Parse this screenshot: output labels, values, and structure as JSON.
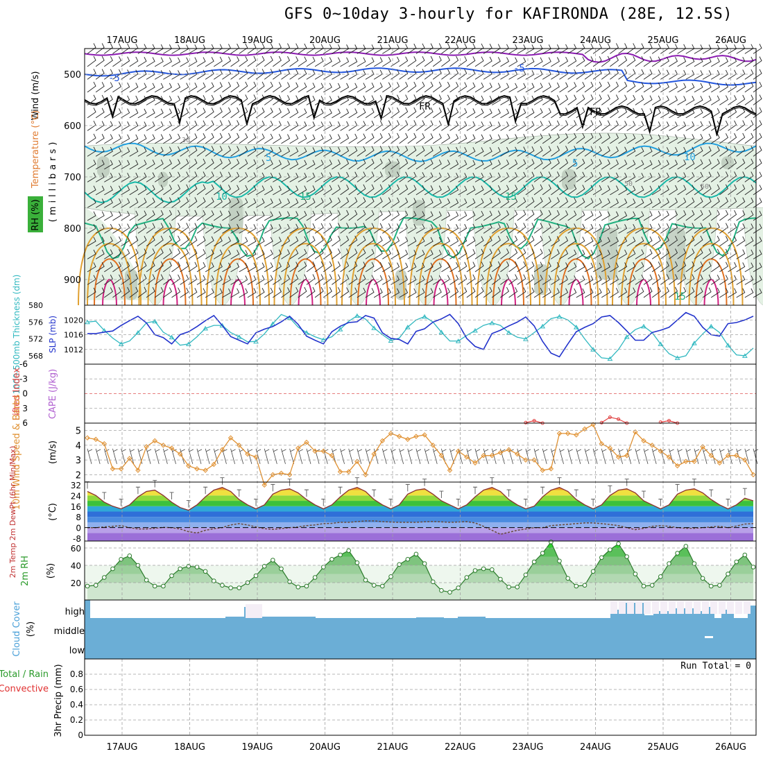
{
  "title": "GFS 0~10day 3-hourly for KAFIRONDA (28E, 12.5S)",
  "dates": [
    "17AUG",
    "18AUG",
    "19AUG",
    "20AUG",
    "21AUG",
    "22AUG",
    "23AUG",
    "24AUG",
    "25AUG",
    "26AUG"
  ],
  "colors": {
    "grid": "#a0a0a0",
    "rh_fill": "#e4f1e4",
    "rh_dark": "#b9c8b9",
    "temp_neg": "#2255dd",
    "temp_5": "#22a0e0",
    "temp_10": "#18b8a8",
    "temp_15": "#20b080",
    "temp_20": "#e0a030",
    "temp_25": "#e07020",
    "temp_30": "#d02080",
    "freezing": "#000000",
    "slp": "#2233cc",
    "thickness": "#30b8c0",
    "wind10": "#e09030",
    "cloud": "#6baed6",
    "rh2m": "#2a9a2a",
    "purple": "#8a1ab0"
  },
  "panels": {
    "upper_air": {
      "ylabels": [
        "Wind (m/s)",
        "Temperature (°C)",
        "RH (%)",
        "(millibars)"
      ],
      "yticks": [
        500,
        600,
        700,
        800,
        900
      ],
      "contour_labels": [
        "-5",
        "-5",
        "FR",
        "FR",
        "5",
        "5",
        "10",
        "15",
        "15",
        "10",
        "30",
        "50",
        "50",
        "15"
      ]
    },
    "slp": {
      "ylabel_thick": "1000-500mb Thickness (dm)",
      "ylabel_slp": "SLP (mb)",
      "thick_ticks": [
        568,
        572,
        576,
        580
      ],
      "slp_ticks": [
        1012,
        1016,
        1020
      ]
    },
    "stability": {
      "ylabel_li": "Lifted Index",
      "ylabel_cape": "CAPE (J/kg)",
      "yticks": [
        "-6",
        "-3",
        "0",
        "3",
        "6"
      ]
    },
    "wind10m": {
      "ylabel": "10m Wind Speed & Barbs",
      "unit": "(m/s)",
      "yticks": [
        2,
        3,
        4,
        5
      ]
    },
    "temp2m": {
      "ylabel": "2m Temp 2m DewPt (6hr Min/Max)",
      "unit": "(°C)",
      "yticks": [
        32,
        24,
        16,
        8,
        0,
        -8
      ]
    },
    "rh2m": {
      "ylabel": "2m RH",
      "unit": "(%)",
      "yticks": [
        20,
        40,
        60
      ]
    },
    "cloud": {
      "ylabel": "Cloud Cover",
      "unit": "(%)",
      "levels": [
        "high",
        "middle",
        "low"
      ]
    },
    "precip": {
      "ylabel_total": "Total / Rain",
      "ylabel_conv": "Convective",
      "ylabel": "3hr Precip (mm)",
      "yticks": [
        "0",
        "0.2",
        "0.4",
        "0.6",
        "0.8"
      ],
      "run_total": "Run Total = 0"
    }
  },
  "chart_data": [
    {
      "type": "line",
      "title": "SLP and 1000-500mb thickness",
      "x": [
        0,
        1,
        2,
        3,
        4,
        5,
        6,
        7,
        8,
        9,
        10,
        11,
        12,
        13,
        14,
        15,
        16,
        17,
        18,
        19,
        20,
        21,
        22,
        23,
        24,
        25,
        26,
        27,
        28,
        29,
        30,
        31,
        32,
        33,
        34,
        35,
        36,
        37,
        38,
        39,
        40,
        41,
        42,
        43,
        44,
        45,
        46,
        47,
        48,
        49,
        50,
        51,
        52,
        53,
        54,
        55,
        56,
        57,
        58,
        59,
        60,
        61,
        62,
        63,
        64,
        65,
        66,
        67,
        68,
        69,
        70,
        71,
        72,
        73,
        74,
        75,
        76,
        77,
        78,
        79
      ],
      "series": [
        {
          "name": "SLP (mb)",
          "values": [
            1016.3,
            1016.3,
            1016.7,
            1017.0,
            1018.5,
            1019.8,
            1021.0,
            1019.2,
            1016.0,
            1015.2,
            1013.5,
            1016.0,
            1016.8,
            1018.2,
            1019.8,
            1021.2,
            1018.5,
            1015.5,
            1014.5,
            1013.5,
            1016.5,
            1017.5,
            1018.2,
            1019.5,
            1021.0,
            1018.8,
            1015.6,
            1014.5,
            1013.5,
            1016.8,
            1018.3,
            1019.3,
            1019.5,
            1021.2,
            1020.5,
            1016.5,
            1015.0,
            1014.7,
            1013.5,
            1016.9,
            1017.6,
            1019.4,
            1020.3,
            1021.5,
            1019.0,
            1015.0,
            1012.8,
            1012.0,
            1016.3,
            1017.2,
            1018.4,
            1019.4,
            1020.8,
            1018.4,
            1014.2,
            1011.0,
            1010.0,
            1013.5,
            1016.8,
            1018.0,
            1019.0,
            1020.8,
            1021.2,
            1019.3,
            1017.0,
            1014.5,
            1014.5,
            1016.6,
            1017.2,
            1018.0,
            1020.0,
            1022.0,
            1021.0,
            1018.0,
            1016.0,
            1015.6,
            1019.0,
            1019.3,
            1020.0,
            1021.0
          ]
        },
        {
          "name": "Thickness (dm)",
          "values": [
            576.0,
            576.2,
            574.0,
            572.2,
            570.8,
            571.5,
            573.5,
            575.8,
            576.2,
            573.6,
            572.4,
            570.5,
            570.8,
            572.5,
            574.5,
            575.2,
            575.2,
            573.5,
            572.5,
            571.3,
            571.4,
            573.2,
            575.6,
            577.8,
            577.0,
            574.8,
            573.5,
            572.5,
            571.8,
            572.5,
            574.3,
            576.2,
            577.5,
            576.7,
            574.6,
            573.0,
            571.6,
            572.2,
            574.8,
            576.5,
            577.3,
            576.0,
            573.6,
            571.5,
            571.5,
            572.8,
            574.0,
            575.2,
            575.8,
            575.2,
            573.5,
            572.4,
            572.0,
            573.5,
            575.0,
            576.8,
            577.3,
            576.5,
            574.8,
            572.0,
            569.5,
            567.5,
            567.3,
            569.5,
            572.5,
            574.2,
            575.0,
            573.5,
            570.8,
            568.5,
            567.5,
            568.0,
            571.0,
            573.2,
            575.0,
            573.5,
            570.5,
            568.2,
            568.0,
            569.8
          ]
        }
      ],
      "slp_range": [
        1008,
        1024
      ],
      "thickness_range": [
        566,
        580
      ]
    },
    {
      "type": "line",
      "title": "10m Wind Speed (m/s)",
      "x": [
        0,
        1,
        2,
        3,
        4,
        5,
        6,
        7,
        8,
        9,
        10,
        11,
        12,
        13,
        14,
        15,
        16,
        17,
        18,
        19,
        20,
        21,
        22,
        23,
        24,
        25,
        26,
        27,
        28,
        29,
        30,
        31,
        32,
        33,
        34,
        35,
        36,
        37,
        38,
        39,
        40,
        41,
        42,
        43,
        44,
        45,
        46,
        47,
        48,
        49,
        50,
        51,
        52,
        53,
        54,
        55,
        56,
        57,
        58,
        59,
        60,
        61,
        62,
        63,
        64,
        65,
        66,
        67,
        68,
        69,
        70,
        71,
        72,
        73,
        74,
        75,
        76,
        77,
        78,
        79
      ],
      "values": [
        4.5,
        4.4,
        4.1,
        2.4,
        2.4,
        3.1,
        2.3,
        3.9,
        4.3,
        4.0,
        3.8,
        3.4,
        2.6,
        2.4,
        2.3,
        2.7,
        3.7,
        4.5,
        4.0,
        3.4,
        3.2,
        1.3,
        2.0,
        2.1,
        2.0,
        3.8,
        4.2,
        3.6,
        3.6,
        3.3,
        2.2,
        2.2,
        2.9,
        2.0,
        3.4,
        4.3,
        4.8,
        4.6,
        4.4,
        4.6,
        4.7,
        4.0,
        3.3,
        2.3,
        3.6,
        3.2,
        2.8,
        3.3,
        3.3,
        3.5,
        3.7,
        3.4,
        3.0,
        3.0,
        2.3,
        2.4,
        4.8,
        4.8,
        4.7,
        5.1,
        5.4,
        4.1,
        3.8,
        3.2,
        3.3,
        4.9,
        4.3,
        4.0,
        3.6,
        3.2,
        2.6,
        2.9,
        2.9,
        3.9,
        3.3,
        2.8,
        3.3,
        3.3,
        3.0,
        2.0
      ],
      "yrange": [
        1.5,
        5.5
      ]
    },
    {
      "type": "area",
      "title": "2m Temperature and Dew Point (°C)",
      "x": [
        0,
        1,
        2,
        3,
        4,
        5,
        6,
        7,
        8,
        9,
        10,
        11,
        12,
        13,
        14,
        15,
        16,
        17,
        18,
        19,
        20,
        21,
        22,
        23,
        24,
        25,
        26,
        27,
        28,
        29,
        30,
        31,
        32,
        33,
        34,
        35,
        36,
        37,
        38,
        39,
        40,
        41,
        42,
        43,
        44,
        45,
        46,
        47,
        48,
        49,
        50,
        51,
        52,
        53,
        54,
        55,
        56,
        57,
        58,
        59,
        60,
        61,
        62,
        63,
        64,
        65,
        66,
        67,
        68,
        69,
        70,
        71,
        72,
        73,
        74,
        75,
        76,
        77,
        78,
        79
      ],
      "series": [
        {
          "name": "2m Temp",
          "values": [
            27,
            24,
            19,
            16,
            14,
            17,
            23,
            27,
            28,
            24,
            19,
            15,
            13,
            17,
            23,
            28,
            30,
            27,
            21,
            17,
            14,
            17,
            25,
            28,
            29,
            26,
            21,
            17,
            14,
            17,
            23,
            28,
            30,
            27,
            21,
            17,
            14,
            17,
            25,
            28,
            29,
            25,
            20,
            17,
            14,
            17,
            23,
            28,
            30,
            27,
            21,
            17,
            14,
            16,
            23,
            28,
            30,
            27,
            21,
            17,
            14,
            17,
            24,
            28,
            29,
            26,
            20,
            17,
            14,
            17,
            25,
            28,
            29,
            26,
            21,
            17,
            14,
            17,
            22,
            20
          ]
        },
        {
          "name": "2m DewPt",
          "values": [
            0,
            0,
            0.5,
            1,
            1.5,
            0,
            -1,
            -1,
            -0.5,
            0.2,
            0,
            -1,
            -3,
            -4,
            -2,
            -0.8,
            0,
            2,
            3,
            2,
            0.5,
            -0.8,
            -1.3,
            -0.7,
            0,
            0.5,
            1.5,
            2,
            3,
            3.2,
            4,
            4,
            4.5,
            5,
            5,
            4.5,
            4.2,
            4,
            4,
            4,
            4.4,
            4.6,
            4.3,
            4.0,
            4.2,
            4.5,
            3.5,
            1,
            -2,
            -5,
            -3.5,
            -2,
            -1,
            0,
            0,
            1.5,
            2,
            2.5,
            3,
            3.5,
            3.5,
            3,
            2.3,
            1.5,
            0,
            -1.5,
            -0.5,
            1,
            1.5,
            1,
            0,
            -0.5,
            -0.5,
            0,
            0.5,
            1,
            0,
            1.2,
            2.7,
            3
          ]
        }
      ],
      "yrange": [
        -10,
        34
      ]
    },
    {
      "type": "area",
      "title": "2m RH (%)",
      "x": [
        0,
        1,
        2,
        3,
        4,
        5,
        6,
        7,
        8,
        9,
        10,
        11,
        12,
        13,
        14,
        15,
        16,
        17,
        18,
        19,
        20,
        21,
        22,
        23,
        24,
        25,
        26,
        27,
        28,
        29,
        30,
        31,
        32,
        33,
        34,
        35,
        36,
        37,
        38,
        39,
        40,
        41,
        42,
        43,
        44,
        45,
        46,
        47,
        48,
        49,
        50,
        51,
        52,
        53,
        54,
        55,
        56,
        57,
        58,
        59,
        60,
        61,
        62,
        63,
        64,
        65,
        66,
        67,
        68,
        69,
        70,
        71,
        72,
        73,
        74,
        75,
        76,
        77,
        78,
        79
      ],
      "values": [
        16,
        17,
        26,
        36,
        47,
        51,
        40,
        23,
        16,
        16,
        28,
        36,
        39,
        38,
        33,
        22,
        17,
        14,
        14,
        20,
        28,
        39,
        46,
        36,
        21,
        15,
        16,
        26,
        38,
        47,
        52,
        57,
        43,
        23,
        17,
        16,
        27,
        41,
        47,
        53,
        42,
        21,
        11,
        9,
        14,
        26,
        34,
        36,
        35,
        24,
        15,
        15,
        29,
        44,
        54,
        67,
        45,
        25,
        16,
        17,
        33,
        49,
        58,
        65,
        50,
        30,
        16,
        17,
        27,
        42,
        54,
        62,
        42,
        25,
        16,
        17,
        30,
        44,
        52,
        38
      ],
      "yrange": [
        0,
        68
      ]
    },
    {
      "type": "line",
      "title": "Lifted Index",
      "x": [
        52,
        53,
        54,
        61,
        62,
        63,
        64,
        68,
        69,
        70
      ],
      "values": [
        5.9,
        5.5,
        6.0,
        5.9,
        4.8,
        5.2,
        6.0,
        5.8,
        5.5,
        6.0
      ],
      "yrange": [
        6,
        -6
      ]
    },
    {
      "type": "bar",
      "title": "3hr Precip (mm)",
      "categories": [
        "Total / Rain",
        "Convective"
      ],
      "values": [
        0,
        0
      ],
      "run_total": 0,
      "yrange": [
        0,
        1
      ]
    }
  ]
}
